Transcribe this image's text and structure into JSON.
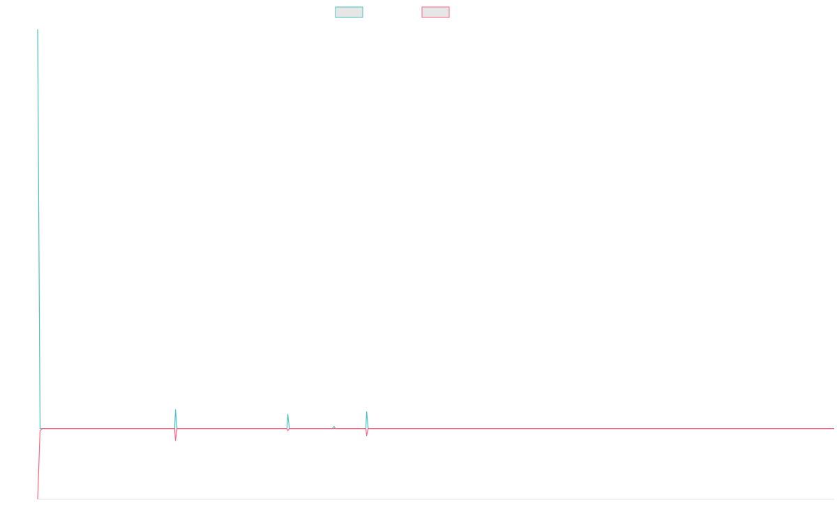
{
  "chart_data": {
    "type": "line",
    "title": "",
    "xlabel": "",
    "ylabel": "",
    "legend_placement": "top",
    "grid": false,
    "x_range": [
      0,
      1000
    ],
    "ylim": [
      -100,
      570
    ],
    "series": [
      {
        "name": "",
        "color": "#4bc0c0",
        "fill": "#e6e6e6",
        "points": [
          [
            0,
            565
          ],
          [
            3,
            0
          ],
          [
            172,
            0
          ],
          [
            173,
            27
          ],
          [
            175,
            0
          ],
          [
            313,
            0
          ],
          [
            314,
            20
          ],
          [
            316,
            0
          ],
          [
            370,
            0
          ],
          [
            372,
            3
          ],
          [
            374,
            0
          ],
          [
            412,
            0
          ],
          [
            413,
            24
          ],
          [
            415,
            0
          ],
          [
            1000,
            0
          ]
        ]
      },
      {
        "name": "",
        "color": "#ff6384",
        "fill": "#e6e6e6",
        "points": [
          [
            0,
            -100
          ],
          [
            3,
            -3
          ],
          [
            6,
            0
          ],
          [
            172,
            0
          ],
          [
            173,
            -17
          ],
          [
            175,
            0
          ],
          [
            313,
            0
          ],
          [
            314,
            -3
          ],
          [
            316,
            0
          ],
          [
            412,
            0
          ],
          [
            413,
            -10
          ],
          [
            415,
            0
          ],
          [
            1000,
            0
          ]
        ]
      }
    ]
  }
}
